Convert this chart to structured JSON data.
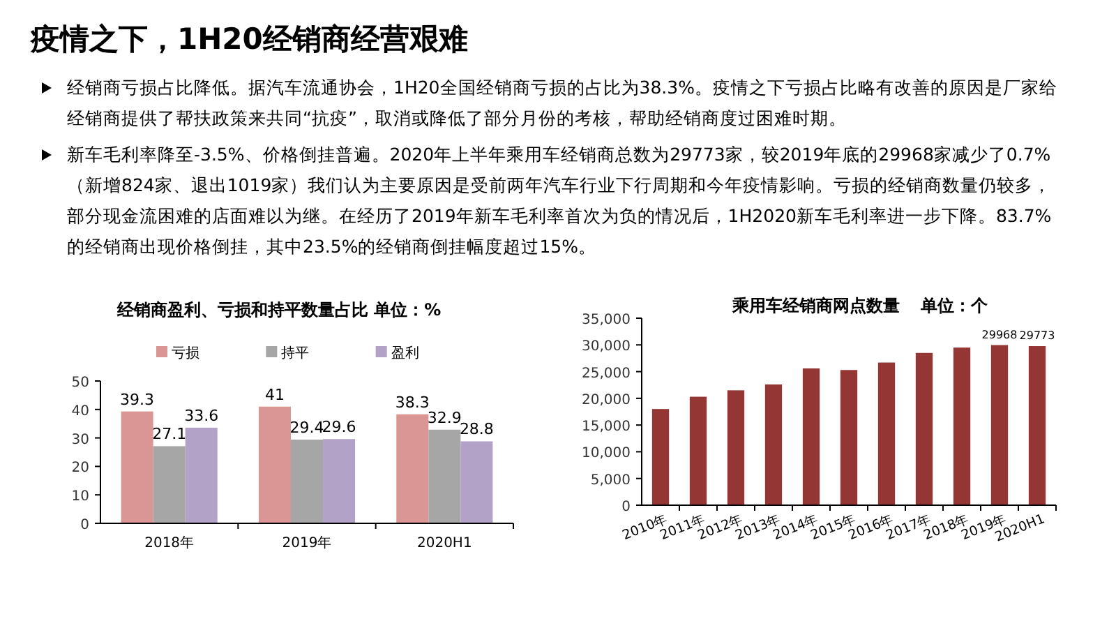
{
  "chart_data": [
    {
      "type": "other",
      "title": "疫情之下，1H20经销商经营艰难",
      "annotations": [
        "经销商亏损占比降低。据汽车流通协会，1H20全国经销商亏损的占比为38.3%。疫情之下亏损占比略有改善的原因是厂家给经销商提供了帮扶政策来共同“抗疫”，取消或降低了部分月份的考核，帮助经销商度过困难时期。",
        "新车毛利率降至-3.5%、价格倒挂普遍。2020年上半年乘用车经销商总数为29773家，较2019年底的29968家减少了0.7%（新增824家、退出1019家）我们认为主要原因是受前两年汽车行业下行周期和今年疫情影响。亏损的经销商数量仍较多，部分现金流困难的店面难以为继。在经历了2019年新车毛利率首次为负的情况后，1H2020新车毛利率进一步下降。83.7%的经销商出现价格倒挂，其中23.5%的经销商倒挂幅度超过15%。"
      ]
    },
    {
      "type": "bar",
      "title": "经销商盈利、亏损和持平数量占比 单位：%",
      "categories": [
        "2018年",
        "2019年",
        "2020H1"
      ],
      "series": [
        {
          "name": "亏损",
          "color": "#d99694",
          "values": [
            39.3,
            41,
            38.3
          ]
        },
        {
          "name": "持平",
          "color": "#a6a6a6",
          "values": [
            27.1,
            29.4,
            32.9
          ]
        },
        {
          "name": "盈利",
          "color": "#b3a2c7",
          "values": [
            33.6,
            29.6,
            28.8
          ]
        }
      ],
      "ylim": [
        0,
        50
      ],
      "yticks": [
        0,
        10,
        20,
        30,
        40,
        50
      ],
      "data_labels": true,
      "legend": "top",
      "grid": false
    },
    {
      "type": "bar",
      "title": "乘用车经销商网点数量",
      "subtitle": "单位：个",
      "categories": [
        "2010年",
        "2011年",
        "2012年",
        "2013年",
        "2014年",
        "2015年",
        "2016年",
        "2017年",
        "2018年",
        "2019年",
        "2020H1"
      ],
      "series": [
        {
          "color": "#943634",
          "values": [
            18000,
            20300,
            21500,
            22600,
            25600,
            25300,
            26700,
            28500,
            29500,
            29968,
            29773
          ],
          "value_labels": [
            null,
            null,
            null,
            null,
            null,
            null,
            null,
            null,
            null,
            "29968",
            "29773"
          ]
        }
      ],
      "ylim": [
        0,
        35000
      ],
      "yticks": [
        {
          "value": 0,
          "label": "0"
        },
        {
          "value": 5000,
          "label": "5,000"
        },
        {
          "value": 10000,
          "label": "10,000"
        },
        {
          "value": 15000,
          "label": "15,000"
        },
        {
          "value": 20000,
          "label": "20,000"
        },
        {
          "value": 25000,
          "label": "25,000"
        },
        {
          "value": 30000,
          "label": "30,000"
        },
        {
          "value": 35000,
          "label": "35,000"
        }
      ],
      "grid": false
    }
  ]
}
